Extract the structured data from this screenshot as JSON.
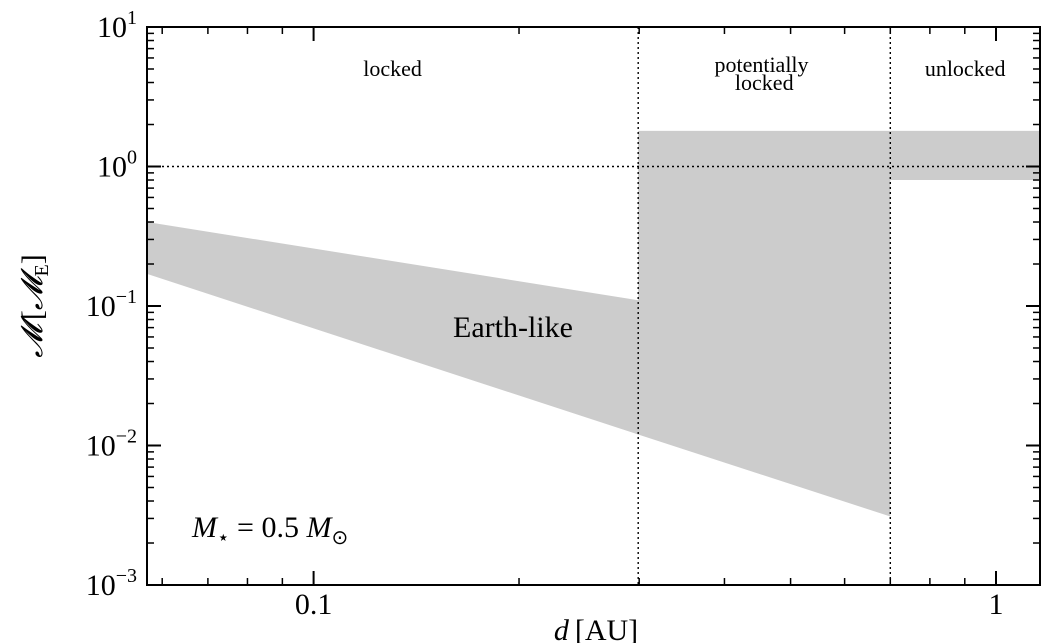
{
  "chart_data": {
    "type": "area",
    "xlabel": {
      "var": "d",
      "unit": "[AU]"
    },
    "ylabel": {
      "var": "𝓜",
      "unit_open": "[",
      "unit": "𝓜",
      "unit_sub": "E",
      "unit_close": "]"
    },
    "xscale": "log",
    "yscale": "log",
    "xlim": [
      0.057,
      1.16
    ],
    "ylim": [
      0.001,
      10
    ],
    "x_ticks": [
      {
        "value": 0.1,
        "label": "0.1"
      },
      {
        "value": 1,
        "label": "1"
      }
    ],
    "y_ticks": [
      {
        "value": 0.001,
        "base": "10",
        "exp": "−3"
      },
      {
        "value": 0.01,
        "base": "10",
        "exp": "−2"
      },
      {
        "value": 0.1,
        "base": "10",
        "exp": "−1"
      },
      {
        "value": 1,
        "base": "10",
        "exp": "0"
      },
      {
        "value": 10,
        "base": "10",
        "exp": "1"
      }
    ],
    "regions": [
      {
        "name": "Earth-like",
        "label": "Earth-like",
        "color": "#cccccc",
        "polygon": [
          [
            0.057,
            0.4
          ],
          [
            0.299,
            0.11
          ],
          [
            0.299,
            1.8
          ],
          [
            0.7,
            1.8
          ],
          [
            0.7,
            0.0031
          ],
          [
            0.299,
            0.012
          ],
          [
            0.057,
            0.17
          ]
        ]
      },
      {
        "name": "unlocked-band",
        "label": "",
        "color": "#cccccc",
        "polygon": [
          [
            0.7,
            1.8
          ],
          [
            1.16,
            1.8
          ],
          [
            1.16,
            0.8
          ],
          [
            0.7,
            0.8
          ]
        ]
      }
    ],
    "reference_lines": [
      {
        "orientation": "vertical",
        "value": 0.299
      },
      {
        "orientation": "vertical",
        "value": 0.7
      },
      {
        "orientation": "horizontal",
        "value": 1.0
      }
    ],
    "zones": [
      {
        "name": "locked",
        "lines": [
          "locked"
        ]
      },
      {
        "name": "potentially-locked",
        "lines": [
          "potentially",
          "locked"
        ]
      },
      {
        "name": "unlocked",
        "lines": [
          "unlocked"
        ]
      }
    ],
    "annotation": {
      "star": "M",
      "star_sub": "⋆",
      "eq": " = 0.5 ",
      "sun": "M",
      "sun_sub": "⊙"
    },
    "grid": false,
    "legend": "none"
  }
}
